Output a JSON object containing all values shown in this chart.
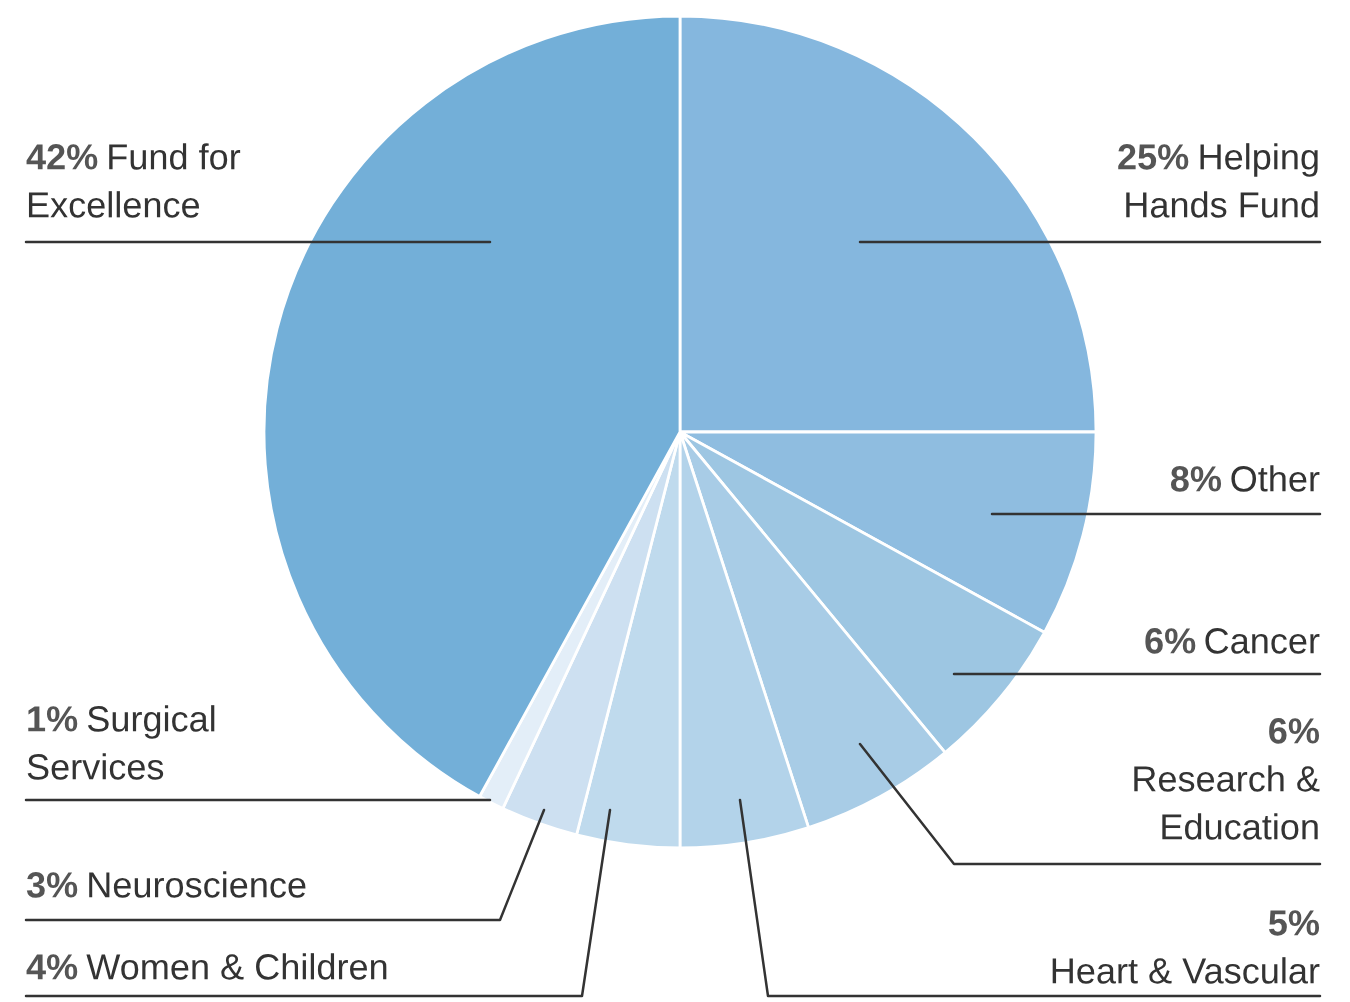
{
  "chart_data": {
    "type": "pie",
    "categories": [
      "Helping Hands Fund",
      "Other",
      "Cancer",
      "Research & Education",
      "Heart & Vascular",
      "Women & Children",
      "Neuroscience",
      "Surgical Services",
      "Fund for Excellence"
    ],
    "values": [
      25,
      8,
      6,
      6,
      5,
      4,
      3,
      1,
      42
    ],
    "value_labels": [
      "25%",
      "8%",
      "6%",
      "6%",
      "5%",
      "4%",
      "3%",
      "1%",
      "42%"
    ],
    "colors": [
      "#85b7de",
      "#8fbde0",
      "#9dc6e2",
      "#a8cce6",
      "#b3d3ea",
      "#bfdaed",
      "#cde0f1",
      "#e3eef8",
      "#73afd8"
    ]
  }
}
